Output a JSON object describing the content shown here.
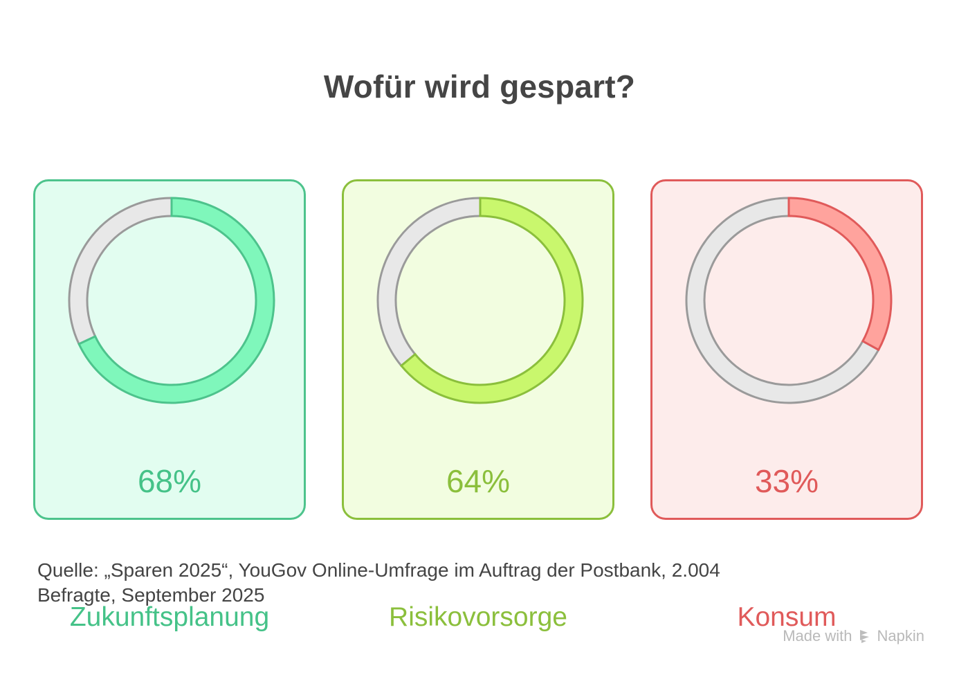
{
  "title": "Wofür wird gespart?",
  "cards": [
    {
      "label": "Zukunftsplanung",
      "value": 68,
      "value_text": "68%",
      "colors": {
        "border": "#4dc38c",
        "background": "#e2fdf0",
        "fill": "#7ff7bb",
        "text": "#45c288"
      }
    },
    {
      "label": "Risikovorsorge",
      "value": 64,
      "value_text": "64%",
      "colors": {
        "border": "#8bbf3c",
        "background": "#f2fde0",
        "fill": "#c9f76d",
        "text": "#8bbf3c"
      }
    },
    {
      "label": "Konsum",
      "value": 33,
      "value_text": "33%",
      "colors": {
        "border": "#e05a5a",
        "background": "#fdeceb",
        "fill": "#ffa39d",
        "text": "#e05a5a"
      }
    }
  ],
  "track_colors": {
    "fill": "#e8e8e8",
    "stroke": "#9a9a9a"
  },
  "source": {
    "line1": "Quelle: „Sparen 2025“, YouGov Online-Umfrage im Auftrag der Postbank, 2.004",
    "line2": "Befragte, September 2025"
  },
  "brand": {
    "prefix": "Made with",
    "name": "Napkin"
  },
  "chart_data": {
    "type": "pie",
    "subtype": "donut-gauges",
    "title": "Wofür wird gespart?",
    "categories": [
      "Zukunftsplanung",
      "Risikovorsorge",
      "Konsum"
    ],
    "values": [
      68,
      64,
      33
    ],
    "unit": "%",
    "source": "Quelle: „Sparen 2025“, YouGov Online-Umfrage im Auftrag der Postbank, 2.004 Befragte, September 2025",
    "legend": "none",
    "grid": false
  }
}
